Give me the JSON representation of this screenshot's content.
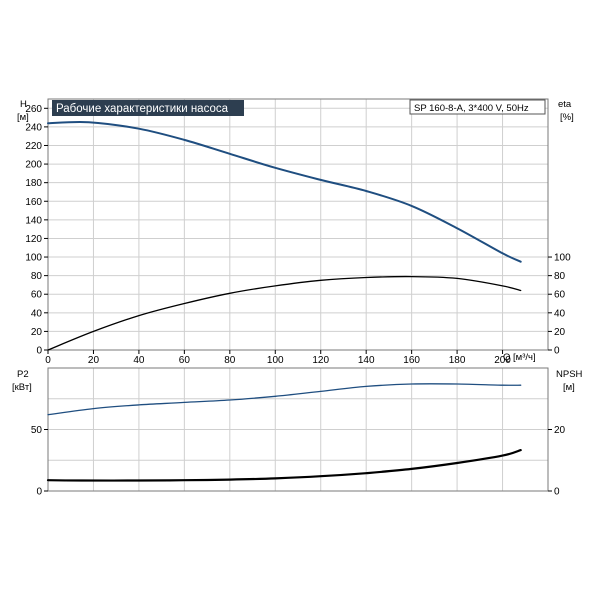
{
  "colors": {
    "head_curve": "#1f4e80",
    "eta_curve": "#000000",
    "p2_curve": "#1f4e80",
    "npsh_curve": "#000000",
    "title_bg": "#2d3e50",
    "title_fg": "#ffffff"
  },
  "chart_data": [
    {
      "type": "line",
      "title": "Рабочие характеристики насоса",
      "model": "SP 160-8-A, 3*400 V, 50Hz",
      "xlabel": "Q [м³/ч]",
      "xlim": [
        0,
        220
      ],
      "xticks": [
        0,
        20,
        40,
        60,
        80,
        100,
        120,
        140,
        160,
        180,
        200
      ],
      "grid": true,
      "left_axis": {
        "label_top": "H",
        "label_unit": "[м]",
        "ylim": [
          0,
          270
        ],
        "ticks": [
          0,
          20,
          40,
          60,
          80,
          100,
          120,
          140,
          160,
          180,
          200,
          220,
          240,
          260
        ]
      },
      "right_axis": {
        "label_top": "eta",
        "label_unit": "[%]",
        "ylim": [
          0,
          270
        ],
        "ticks": [
          0,
          20,
          40,
          60,
          80,
          100
        ]
      },
      "series": [
        {
          "axis": "left",
          "x": [
            0,
            18,
            40,
            60,
            80,
            100,
            120,
            140,
            160,
            180,
            200,
            208
          ],
          "values": [
            244,
            245,
            238,
            226,
            211,
            196,
            183,
            171,
            155,
            131,
            104,
            95
          ]
        },
        {
          "axis": "right",
          "x": [
            0,
            20,
            40,
            60,
            80,
            100,
            120,
            140,
            160,
            180,
            200,
            208
          ],
          "values": [
            0,
            20,
            37,
            50,
            61,
            69,
            75,
            78,
            79,
            77,
            69,
            64
          ]
        }
      ]
    },
    {
      "type": "line",
      "xlim": [
        0,
        220
      ],
      "grid": true,
      "left_axis": {
        "label_top": "P2",
        "label_unit": "[кВт]",
        "ylim": [
          0,
          100
        ],
        "ticks": [
          0,
          50
        ]
      },
      "right_axis": {
        "label_top": "NPSH",
        "label_unit": "[м]",
        "ylim": [
          0,
          40
        ],
        "ticks": [
          0,
          20
        ]
      },
      "series": [
        {
          "axis": "left",
          "x": [
            0,
            20,
            40,
            60,
            80,
            100,
            120,
            140,
            160,
            180,
            200,
            208
          ],
          "values": [
            62,
            67,
            70,
            72,
            74,
            77,
            81,
            85,
            87,
            87,
            86,
            86
          ]
        },
        {
          "axis": "right",
          "x": [
            0,
            15,
            40,
            60,
            80,
            100,
            120,
            140,
            160,
            180,
            200,
            208
          ],
          "values": [
            3.5,
            3.4,
            3.4,
            3.5,
            3.7,
            4.1,
            4.8,
            5.8,
            7.2,
            9.1,
            11.5,
            13.3
          ]
        }
      ]
    }
  ]
}
